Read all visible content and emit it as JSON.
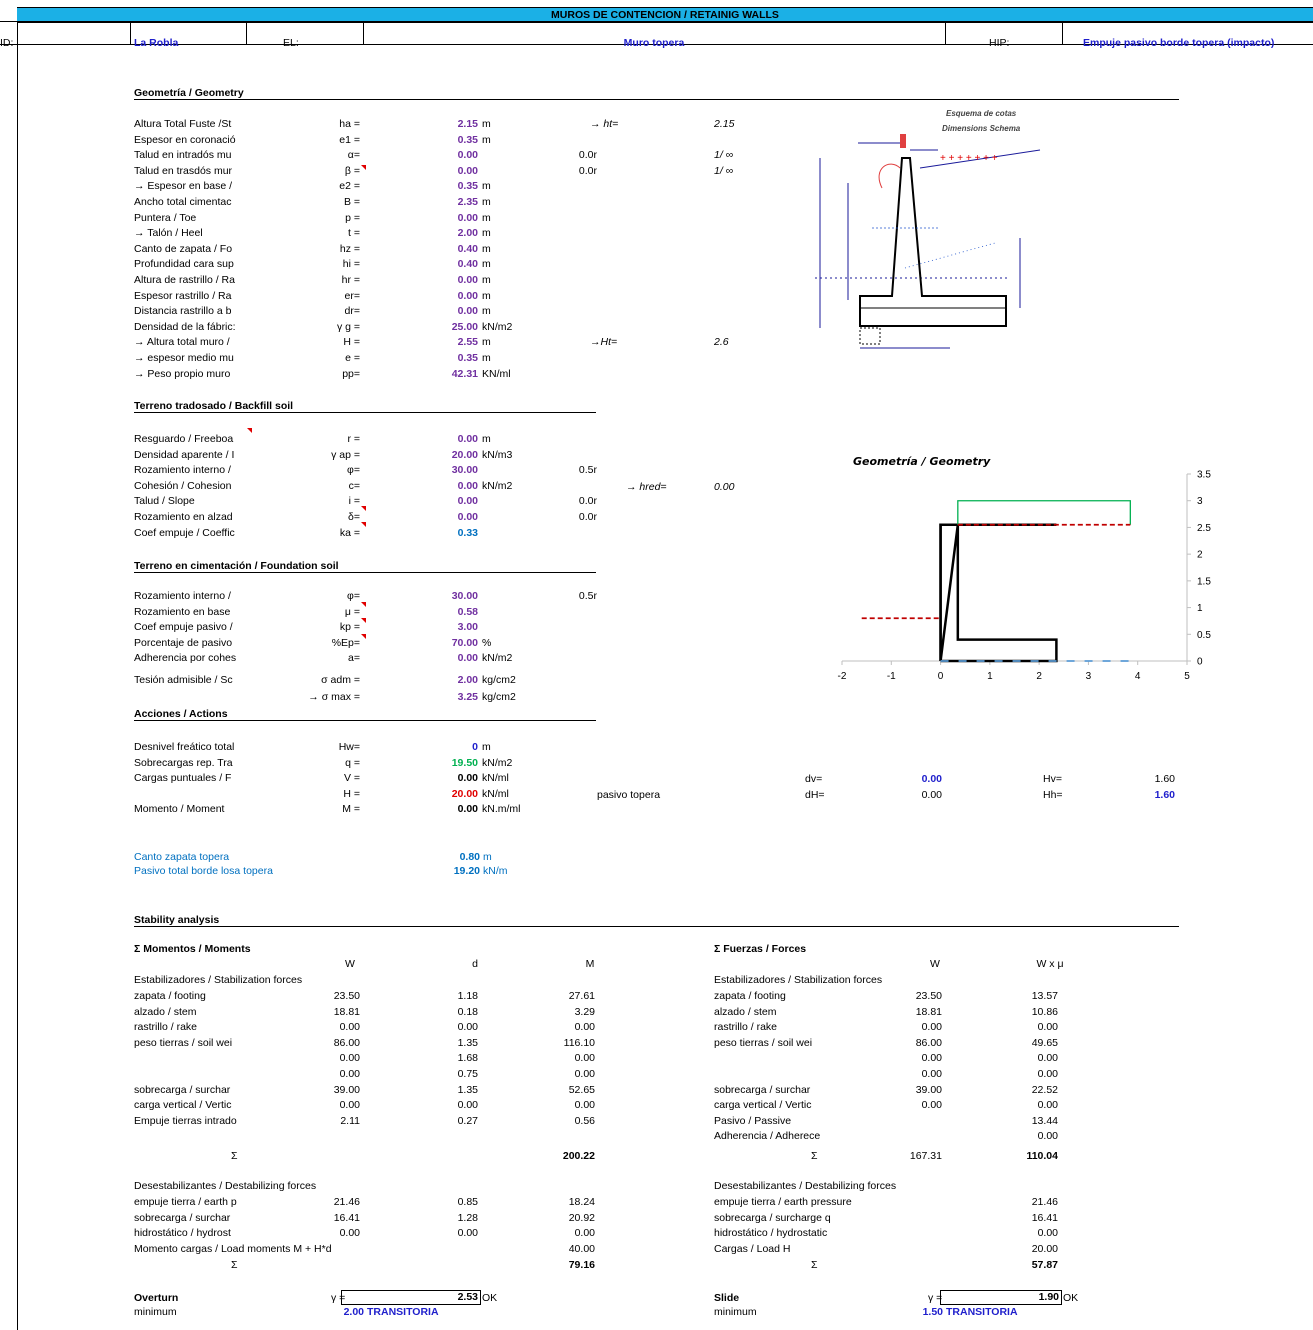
{
  "title": "MUROS DE CONTENCION  / RETAINIG WALLS",
  "header": {
    "id_label": "ID:",
    "id_value": "La Robla",
    "el_label": "EL:",
    "el_value": "Muro topera",
    "hip_label": "HIP:",
    "hip_value": "Empuje pasivo borde topera (impacto)"
  },
  "geometry": {
    "section": "Geometría / Geometry",
    "rows": [
      {
        "label": "Altura Total Fuste /St",
        "sym": "ha =",
        "val": "2.15",
        "unit": "m",
        "extra": "",
        "ital_label": "→ ht=",
        "ital_val": "2.15"
      },
      {
        "label": "Espesor en coronació",
        "sym": "e1 =",
        "val": "0.35",
        "unit": "m",
        "extra": "",
        "ital_label": "",
        "ital_val": ""
      },
      {
        "label": "Talud en intradós mu",
        "sym": "α=",
        "val": "0.00",
        "unit": "",
        "extra": "0.0r",
        "ital_label": "",
        "ital_val": "1/ ∞"
      },
      {
        "label": "Talud en trasdós mur",
        "sym": "β =",
        "val": "0.00",
        "unit": "",
        "extra": "0.0r",
        "ital_label": "",
        "ital_val": "1/ ∞"
      },
      {
        "label": "→ Espesor en base /",
        "sym": "e2 =",
        "val": "0.35",
        "unit": "m",
        "extra": "",
        "ital_label": "",
        "ital_val": ""
      },
      {
        "label": "Ancho total cimentac",
        "sym": "B =",
        "val": "2.35",
        "unit": "m",
        "extra": "",
        "ital_label": "",
        "ital_val": ""
      },
      {
        "label": "Puntera  / Toe",
        "sym": "p =",
        "val": "0.00",
        "unit": "m",
        "extra": "",
        "ital_label": "",
        "ital_val": ""
      },
      {
        "label": "→ Talón / Heel",
        "sym": "t =",
        "val": "2.00",
        "unit": "m",
        "extra": "",
        "ital_label": "",
        "ital_val": ""
      },
      {
        "label": "Canto de zapata / Fo",
        "sym": "hz =",
        "val": "0.40",
        "unit": "m",
        "extra": "",
        "ital_label": "",
        "ital_val": ""
      },
      {
        "label": "Profundidad cara sup",
        "sym": "hi =",
        "val": "0.40",
        "unit": "m",
        "extra": "",
        "ital_label": "",
        "ital_val": ""
      },
      {
        "label": "Altura de rastrillo / Ra",
        "sym": "hr =",
        "val": "0.00",
        "unit": "m",
        "extra": "",
        "ital_label": "",
        "ital_val": ""
      },
      {
        "label": "Espesor rastrillo / Ra",
        "sym": "er=",
        "val": "0.00",
        "unit": "m",
        "extra": "",
        "ital_label": "",
        "ital_val": ""
      },
      {
        "label": "Distancia rastrillo a b",
        "sym": "dr=",
        "val": "0.00",
        "unit": "m",
        "extra": "",
        "ital_label": "",
        "ital_val": ""
      },
      {
        "label": "Densidad de la fábric:",
        "sym": "γ g =",
        "val": "25.00",
        "unit": "kN/m2",
        "extra": "",
        "ital_label": "",
        "ital_val": ""
      },
      {
        "label": "→ Altura total muro /",
        "sym": "H =",
        "val": "2.55",
        "unit": "m",
        "extra": "",
        "ital_label": "→Ht=",
        "ital_val": "2.6"
      },
      {
        "label": "→ espesor medio mu",
        "sym": "e =",
        "val": "0.35",
        "unit": "m",
        "extra": "",
        "ital_label": "",
        "ital_val": ""
      },
      {
        "label": "→ Peso propio muro",
        "sym": "pp=",
        "val": "42.31",
        "unit": "KN/ml",
        "extra": "",
        "ital_label": "",
        "ital_val": ""
      }
    ]
  },
  "schema": {
    "title1": "Esquema de cotas",
    "title2": "Dimensions Schema"
  },
  "backfill": {
    "section": "Terreno tradosado / Backfill soil",
    "rows": [
      {
        "label": "Resguardo / Freeboa",
        "sym": "r =",
        "val": "0.00",
        "unit": "m",
        "extra": "",
        "cls": "purple"
      },
      {
        "label": "Densidad aparente / I",
        "sym": "γ ap =",
        "val": "20.00",
        "unit": "kN/m3",
        "extra": "",
        "cls": "purple"
      },
      {
        "label": "Rozamiento interno /",
        "sym": "φ=",
        "val": "30.00",
        "unit": "",
        "extra": "0.5r",
        "cls": "purple"
      },
      {
        "label": "Cohesión / Cohesion",
        "sym": "c=",
        "val": "0.00",
        "unit": "kN/m2",
        "extra": "",
        "cls": "purple"
      },
      {
        "label": "Talud / Slope",
        "sym": "i =",
        "val": "0.00",
        "unit": "",
        "extra": "0.0r",
        "cls": "purple"
      },
      {
        "label": "Rozamiento en alzad",
        "sym": "δ=",
        "val": "0.00",
        "unit": "",
        "extra": "0.0r",
        "cls": "purple"
      },
      {
        "label": "Coef empuje / Coeffic",
        "sym": "ka =",
        "val": "0.33",
        "unit": "",
        "extra": "",
        "cls": "blueb"
      }
    ],
    "hred_label": "→ hred=",
    "hred_val": "0.00"
  },
  "foundation": {
    "section": "Terreno en cimentación / Foundation soil",
    "rows": [
      {
        "label": "Rozamiento interno /",
        "sym": "φ=",
        "val": "30.00",
        "unit": "",
        "extra": "0.5r"
      },
      {
        "label": "Rozamiento en base",
        "sym": "μ =",
        "val": "0.58",
        "unit": "",
        "extra": ""
      },
      {
        "label": "Coef empuje pasivo /",
        "sym": "kp =",
        "val": "3.00",
        "unit": "",
        "extra": ""
      },
      {
        "label": "Porcentaje de pasivo",
        "sym": "%Ep=",
        "val": "70.00",
        "unit": "%",
        "extra": ""
      },
      {
        "label": "Adherencia por cohes",
        "sym": "a=",
        "val": "0.00",
        "unit": "kN/m2",
        "extra": ""
      },
      {
        "label": "Tesión admisible / Sc",
        "sym": "σ adm =",
        "val": "2.00",
        "unit": "kg/cm2",
        "extra": ""
      },
      {
        "label": "",
        "sym": "→ σ max =",
        "val": "3.25",
        "unit": "kg/cm2",
        "extra": ""
      }
    ]
  },
  "actions": {
    "section": "Acciones / Actions",
    "rows": [
      {
        "label": "Desnivel freático total",
        "sym": "Hw=",
        "val": "0",
        "unit": "m",
        "cls": "navy"
      },
      {
        "label": "Sobrecargas rep. Tra",
        "sym": "q =",
        "val": "19.50",
        "unit": "kN/m2",
        "cls": "green"
      },
      {
        "label": "Cargas  puntuales / F",
        "sym": "V =",
        "val": "0.00",
        "unit": "kN/ml",
        "cls": "b"
      },
      {
        "label": "",
        "sym": "H =",
        "val": "20.00",
        "unit": "kN/ml",
        "cls": "red"
      },
      {
        "label": "Momento / Moment",
        "sym": "M =",
        "val": "0.00",
        "unit": "kN.m/ml",
        "cls": "b"
      }
    ],
    "pasivo_label": "pasivo topera",
    "dv_label": "dv=",
    "dv_val": "0.00",
    "Hv_label": "Hv=",
    "Hv_val": "1.60",
    "dH_label": "dH=",
    "dH_val": "0.00",
    "Hh_label": "Hh=",
    "Hh_val": "1.60",
    "canto_label": "Canto zapata topera",
    "canto_val": "0.80",
    "canto_unit": "m",
    "pasivo_total_label": "Pasivo total borde losa topera",
    "pasivo_total_val": "19.20",
    "pasivo_total_unit": "kN/m"
  },
  "chart_data": {
    "type": "line",
    "title": "Geometría / Geometry",
    "xlim": [
      -2,
      5
    ],
    "ylim": [
      0,
      3.5
    ],
    "x_ticks": [
      "-2",
      "-1",
      "0",
      "1",
      "2",
      "3",
      "4",
      "5"
    ],
    "y_ticks": [
      "0",
      "0.5",
      "1",
      "1.5",
      "2",
      "2.5",
      "3",
      "3.5"
    ],
    "series": [
      {
        "color": "#000000",
        "style": "solid",
        "x": [
          0,
          0,
          2.35,
          2.35,
          0.35,
          0.35,
          0
        ],
        "y": [
          0,
          2.55,
          2.55,
          2.55,
          2.55,
          2.55,
          0
        ]
      },
      {
        "color": "#000000",
        "style": "solid",
        "x": [
          0,
          2.35,
          2.35,
          0.35,
          0.35,
          0,
          0
        ],
        "y": [
          0,
          0,
          0.4,
          0.4,
          2.55,
          2.55,
          0
        ]
      },
      {
        "color": "#00b050",
        "style": "solid",
        "x": [
          0.35,
          0.35,
          3.85,
          3.85
        ],
        "y": [
          2.55,
          3.0,
          3.0,
          2.55
        ]
      },
      {
        "color": "#c00000",
        "style": "dashed",
        "x": [
          0.35,
          3.85
        ],
        "y": [
          2.55,
          2.55
        ]
      },
      {
        "color": "#c00000",
        "style": "dashed",
        "x": [
          -1.6,
          0
        ],
        "y": [
          0.8,
          0.8
        ]
      },
      {
        "color": "#5b9bd5",
        "style": "dashed",
        "x": [
          0,
          3.85
        ],
        "y": [
          0,
          0
        ]
      }
    ]
  },
  "stability": {
    "section": "Stability analysis",
    "moments": {
      "title": "Σ  Momentos / Moments",
      "headers": [
        "W",
        "d",
        "M"
      ],
      "stab_title": "Estabilizadores / Stabilization forces",
      "stab_rows": [
        [
          "zapata / footing",
          "23.50",
          "1.18",
          "27.61"
        ],
        [
          "alzado / stem",
          "18.81",
          "0.18",
          "3.29"
        ],
        [
          "rastrillo / rake",
          "0.00",
          "0.00",
          "0.00"
        ],
        [
          "peso tierras / soil wei",
          "86.00",
          "1.35",
          "116.10"
        ],
        [
          "",
          "0.00",
          "1.68",
          "0.00"
        ],
        [
          "",
          "0.00",
          "0.75",
          "0.00"
        ],
        [
          "sobrecarga  / surchar",
          "39.00",
          "1.35",
          "52.65"
        ],
        [
          "carga vertical / Vertic",
          "0.00",
          "0.00",
          "0.00"
        ],
        [
          "Empuje tierras intrado",
          "2.11",
          "0.27",
          "0.56"
        ]
      ],
      "stab_sum_label": "Σ",
      "stab_sum": "200.22",
      "dest_title": "Desestabilizantes / Destabilizing forces",
      "dest_rows": [
        [
          "empuje tierra / earth p",
          "21.46",
          "0.85",
          "18.24"
        ],
        [
          "sobrecarga  / surchar",
          "16.41",
          "1.28",
          "20.92"
        ],
        [
          "hidrostático / hydrost",
          "0.00",
          "0.00",
          "0.00"
        ],
        [
          "Momento cargas  / Load moments M + H*d",
          "",
          "",
          "40.00"
        ]
      ],
      "dest_sum_label": "Σ",
      "dest_sum": "79.16",
      "result_label": "Overturn",
      "gamma_label": "γ =",
      "gamma": "2.53",
      "ok": "OK",
      "min_label": "minimum",
      "min_val": "2.00",
      "min_type": "TRANSITORIA"
    },
    "forces": {
      "title": "Σ  Fuerzas / Forces",
      "headers": [
        "W",
        "W x μ"
      ],
      "stab_title": "Estabilizadores / Stabilization forces",
      "stab_rows": [
        [
          "zapata / footing",
          "23.50",
          "13.57"
        ],
        [
          "alzado / stem",
          "18.81",
          "10.86"
        ],
        [
          "rastrillo / rake",
          "0.00",
          "0.00"
        ],
        [
          "peso tierras / soil wei",
          "86.00",
          "49.65"
        ],
        [
          "",
          "0.00",
          "0.00"
        ],
        [
          "",
          "0.00",
          "0.00"
        ],
        [
          "sobrecarga  / surchar",
          "39.00",
          "22.52"
        ],
        [
          "carga vertical / Vertic",
          "0.00",
          "0.00"
        ],
        [
          "Pasivo  / Passive",
          "",
          "13.44"
        ],
        [
          "Adherencia / Adherece",
          "",
          "0.00"
        ]
      ],
      "stab_sum_label": "Σ",
      "stab_sum_w": "167.31",
      "stab_sum": "110.04",
      "dest_title": "Desestabilizantes / Destabilizing forces",
      "dest_rows": [
        [
          "empuje tierra / earth pressure",
          "21.46"
        ],
        [
          "sobrecarga  / surcharge q",
          "16.41"
        ],
        [
          "hidrostático / hydrostatic",
          "0.00"
        ],
        [
          "Cargas  / Load H",
          "20.00"
        ]
      ],
      "dest_sum_label": "Σ",
      "dest_sum": "57.87",
      "result_label": "Slide",
      "gamma_label": "γ =",
      "gamma": "1.90",
      "ok": "OK",
      "min_label": "minimum",
      "min_val": "1.50",
      "min_type": "TRANSITORIA"
    }
  }
}
